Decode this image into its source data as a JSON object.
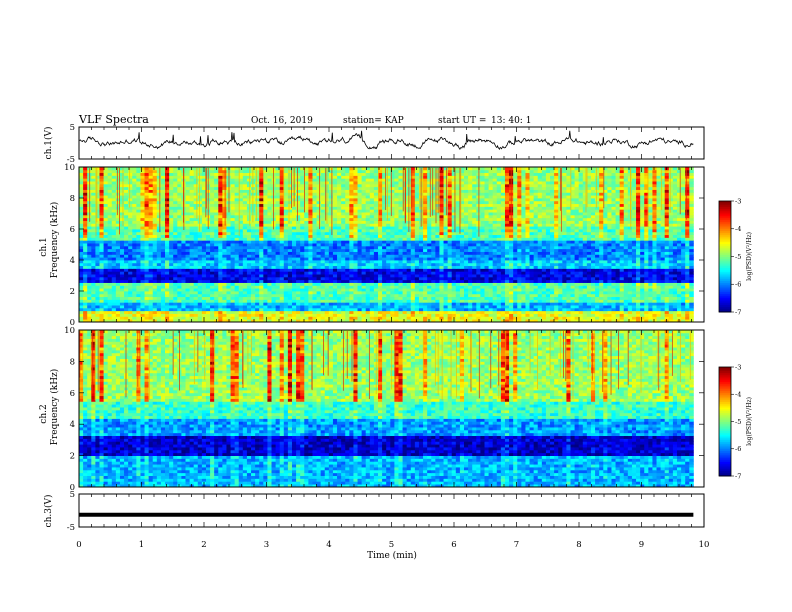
{
  "header": {
    "title": "VLF Spectra",
    "date": "Oct. 16, 2019",
    "station": "station= KAP",
    "start": "start UT =",
    "start_time": "13: 40: 1"
  },
  "chart_data": [
    {
      "type": "line",
      "title": "",
      "ylabel": "ch.1(V)",
      "ylim": [
        -5,
        5
      ],
      "yticks": [
        "5",
        "-5"
      ],
      "x_range_min": [
        0,
        9.83
      ],
      "description_values": "irregular waveform with mean near 0.3 V and amplitude about ±2 V",
      "color": "#000000"
    },
    {
      "type": "heatmap",
      "ylabel": "ch.1",
      "ylabel2": "Frequency (kHz)",
      "ylim": [
        0,
        10
      ],
      "yticks": [
        "0",
        "2",
        "4",
        "6",
        "8",
        "10"
      ],
      "x_range_min": [
        0,
        9.83
      ],
      "colorbar": {
        "label": "log(PSD)(V²/Hz)",
        "range": [
          -7,
          -3
        ],
        "ticks": [
          "-3",
          "-4",
          "-5",
          "-6",
          "-7"
        ]
      },
      "band_levels": [
        {
          "from_khz": 0.0,
          "to_khz": 0.8,
          "log_psd": -4.6
        },
        {
          "from_khz": 0.8,
          "to_khz": 1.2,
          "log_psd": -5.8
        },
        {
          "from_khz": 1.2,
          "to_khz": 2.6,
          "log_psd": -5.2
        },
        {
          "from_khz": 2.6,
          "to_khz": 3.4,
          "log_psd": -6.6
        },
        {
          "from_khz": 3.4,
          "to_khz": 4.0,
          "log_psd": -5.7
        },
        {
          "from_khz": 4.0,
          "to_khz": 5.2,
          "log_psd": -6.0
        },
        {
          "from_khz": 5.2,
          "to_khz": 6.2,
          "log_psd": -5.2
        },
        {
          "from_khz": 6.2,
          "to_khz": 10.0,
          "log_psd": -4.9
        }
      ]
    },
    {
      "type": "heatmap",
      "ylabel": "ch.2",
      "ylabel2": "Frequency (kHz)",
      "ylim": [
        0,
        10
      ],
      "yticks": [
        "0",
        "2",
        "4",
        "6",
        "8",
        "10"
      ],
      "x_range_min": [
        0,
        9.83
      ],
      "colorbar": {
        "label": "log(PSD)(V²/Hz)",
        "range": [
          -7,
          -3
        ],
        "ticks": [
          "-3",
          "-4",
          "-5",
          "-6",
          "-7"
        ]
      },
      "band_levels": [
        {
          "from_khz": 0.0,
          "to_khz": 2.0,
          "log_psd": -5.8
        },
        {
          "from_khz": 2.0,
          "to_khz": 3.3,
          "log_psd": -6.7
        },
        {
          "from_khz": 3.3,
          "to_khz": 4.3,
          "log_psd": -5.9
        },
        {
          "from_khz": 4.3,
          "to_khz": 5.5,
          "log_psd": -5.3
        },
        {
          "from_khz": 5.5,
          "to_khz": 10.0,
          "log_psd": -4.9
        }
      ]
    },
    {
      "type": "line",
      "ylabel": "ch.3(V)",
      "ylim": [
        -5,
        5
      ],
      "yticks": [
        "5",
        "-5"
      ],
      "x_range_min": [
        0,
        9.83
      ],
      "constant_value": -1.3,
      "color": "#000000"
    }
  ],
  "xaxis": {
    "label": "Time (min)",
    "ticks": [
      "0",
      "1",
      "2",
      "3",
      "4",
      "5",
      "6",
      "7",
      "8",
      "9",
      "10"
    ],
    "range": [
      0,
      10
    ]
  }
}
